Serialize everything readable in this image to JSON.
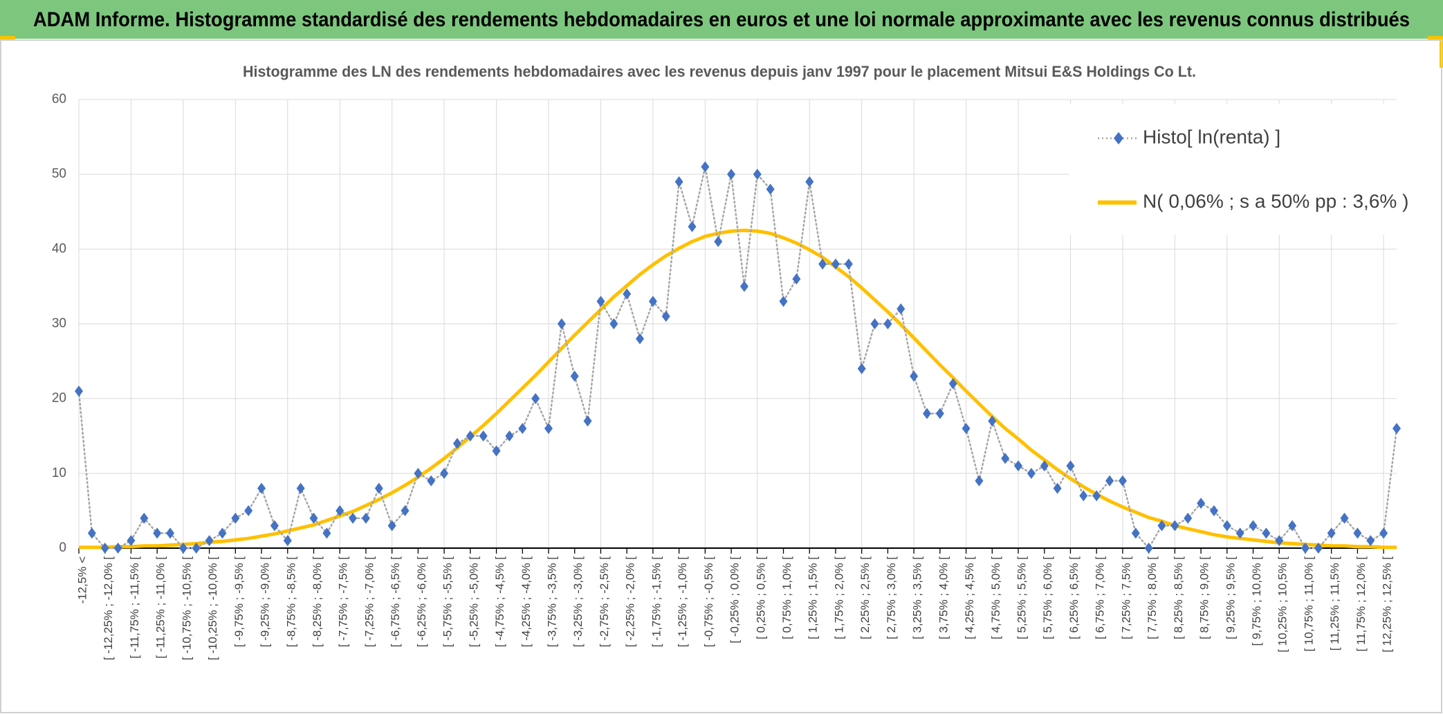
{
  "header": {
    "title": "ADAM Informe. Histogramme standardisé des rendements hebdomadaires en euros et une loi normale approximante avec les revenus connus distribués"
  },
  "chart_data": {
    "type": "line",
    "title": "Histogramme des LN des rendements hebdomadaires avec les revenus depuis janv 1997 pour le placement Mitsui E&S Holdings Co Lt.",
    "categories": [
      "-12,5% <",
      null,
      "[ -12,25% ; -12,0% [",
      null,
      "[ -11,75% ; -11,5% [",
      null,
      "[ -11,25% ; -11,0% [",
      null,
      "[ -10,75% ; -10,5% [",
      null,
      "[ -10,25% ; -10,0% [",
      null,
      "[ -9,75% ; -9,5% [",
      null,
      "[ -9,25% ; -9,0% [",
      null,
      "[ -8,75% ; -8,5% [",
      null,
      "[ -8,25% ; -8,0% [",
      null,
      "[ -7,75% ; -7,5% [",
      null,
      "[ -7,25% ; -7,0% [",
      null,
      "[ -6,75% ; -6,5% [",
      null,
      "[ -6,25% ; -6,0% [",
      null,
      "[ -5,75% ; -5,5% [",
      null,
      "[ -5,25% ; -5,0% [",
      null,
      "[ -4,75% ; -4,5% [",
      null,
      "[ -4,25% ; -4,0% [",
      null,
      "[ -3,75% ; -3,5% [",
      null,
      "[ -3,25% ; -3,0% [",
      null,
      "[ -2,75% ; -2,5% [",
      null,
      "[ -2,25% ; -2,0% [",
      null,
      "[ -1,75% ; -1,5% [",
      null,
      "[ -1,25% ; -1,0% [",
      null,
      "[ -0,75% ; -0,5% [",
      null,
      "[ -0,25% ; 0,0% [",
      null,
      "[ 0,25% ; 0,5% [",
      null,
      "[ 0,75% ; 1,0% [",
      null,
      "[ 1,25% ; 1,5% [",
      null,
      "[ 1,75% ; 2,0% [",
      null,
      "[ 2,25% ; 2,5% [",
      null,
      "[ 2,75% ; 3,0% [",
      null,
      "[ 3,25% ; 3,5% [",
      null,
      "[ 3,75% ; 4,0% [",
      null,
      "[ 4,25% ; 4,5% [",
      null,
      "[ 4,75% ; 5,0% [",
      null,
      "[ 5,25% ; 5,5% [",
      null,
      "[ 5,75% ; 6,0% [",
      null,
      "[ 6,25% ; 6,5% [",
      null,
      "[ 6,75% ; 7,0% [",
      null,
      "[ 7,25% ; 7,5% [",
      null,
      "[ 7,75% ; 8,0% [",
      null,
      "[ 8,25% ; 8,5% [",
      null,
      "[ 8,75% ; 9,0% [",
      null,
      "[ 9,25% ; 9,5% [",
      null,
      "[ 9,75% ; 10,0% [",
      null,
      "[ 10,25% ; 10,5% [",
      null,
      "[ 10,75% ; 11,0% [",
      null,
      "[ 11,25% ; 11,5% [",
      null,
      "[ 11,75% ; 12,0% [",
      null,
      "[ 12,25% ; 12,5% [",
      null
    ],
    "series": [
      {
        "name": "Histo[ ln(renta) ]",
        "color": "#4472c4",
        "line_color": "#a6a6a6",
        "dash": "dotted",
        "marker": "diamond",
        "values": [
          21,
          2,
          0,
          0,
          1,
          4,
          2,
          2,
          0,
          0,
          1,
          2,
          4,
          5,
          8,
          3,
          1,
          8,
          4,
          2,
          5,
          4,
          4,
          8,
          3,
          5,
          10,
          9,
          10,
          14,
          15,
          15,
          13,
          15,
          16,
          20,
          16,
          30,
          23,
          17,
          33,
          30,
          34,
          28,
          33,
          31,
          49,
          43,
          51,
          41,
          50,
          35,
          50,
          48,
          33,
          36,
          49,
          38,
          38,
          38,
          24,
          30,
          30,
          32,
          23,
          18,
          18,
          22,
          16,
          9,
          17,
          12,
          11,
          10,
          11,
          8,
          11,
          7,
          7,
          9,
          9,
          2,
          0,
          3,
          3,
          4,
          6,
          5,
          3,
          2,
          3,
          2,
          1,
          3,
          0,
          0,
          2,
          4,
          2,
          1,
          2,
          16
        ]
      },
      {
        "name": "N( 0,06% ; s a 50% pp : 3,6% )",
        "color": "#ffc000",
        "values": [
          0.1,
          0.1,
          0.1,
          0.2,
          0.2,
          0.3,
          0.3,
          0.4,
          0.5,
          0.6,
          0.8,
          0.9,
          1.1,
          1.3,
          1.6,
          1.9,
          2.3,
          2.7,
          3.1,
          3.7,
          4.3,
          4.9,
          5.7,
          6.5,
          7.4,
          8.4,
          9.5,
          10.7,
          12.0,
          13.4,
          14.9,
          16.4,
          18.0,
          19.7,
          21.4,
          23.1,
          24.9,
          26.7,
          28.5,
          30.2,
          31.9,
          33.6,
          35.1,
          36.6,
          37.9,
          39.1,
          40.1,
          41.0,
          41.7,
          42.1,
          42.4,
          42.5,
          42.4,
          42.1,
          41.5,
          40.8,
          39.9,
          38.9,
          37.6,
          36.3,
          34.8,
          33.2,
          31.6,
          29.9,
          28.1,
          26.3,
          24.5,
          22.8,
          21.0,
          19.3,
          17.6,
          16.0,
          14.6,
          13.1,
          11.8,
          10.5,
          9.3,
          8.2,
          7.2,
          6.3,
          5.5,
          4.8,
          4.1,
          3.6,
          3.0,
          2.6,
          2.2,
          1.8,
          1.5,
          1.3,
          1.1,
          0.9,
          0.7,
          0.6,
          0.5,
          0.4,
          0.3,
          0.3,
          0.2,
          0.2,
          0.1,
          0.1
        ]
      }
    ],
    "ylim": [
      0,
      60
    ],
    "yticks": [
      0,
      10,
      20,
      30,
      40,
      50,
      60
    ],
    "grid": true,
    "legend": "top-right"
  }
}
